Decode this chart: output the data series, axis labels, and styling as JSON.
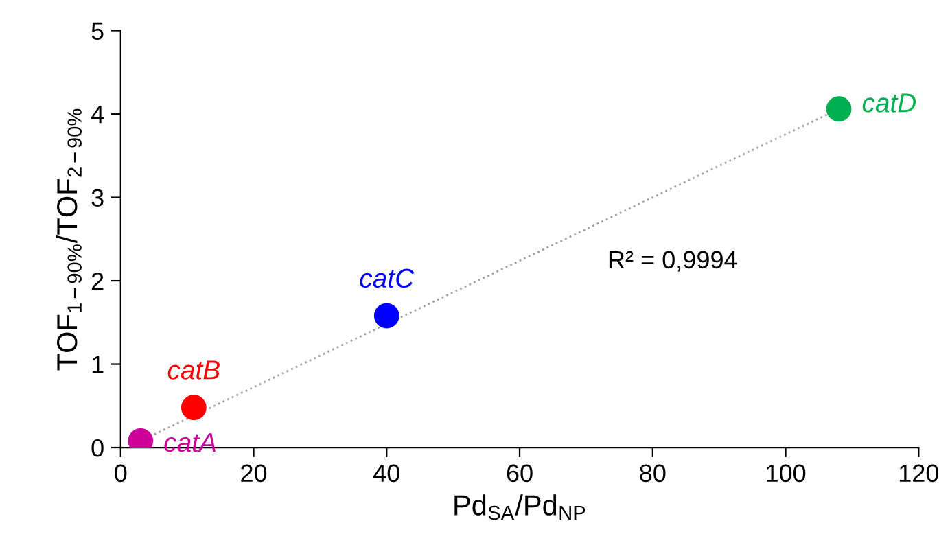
{
  "chart_data": {
    "type": "scatter",
    "xlabel": "Pd$_{SA}$/Pd$_{NP}$",
    "ylabel": "TOF$_{1−90%}$/TOF$_{2−90%}$",
    "xlim": [
      0,
      120
    ],
    "xticks": [
      0,
      20,
      40,
      60,
      80,
      100,
      120
    ],
    "ylim": [
      0,
      5
    ],
    "yticks": [
      0,
      1,
      2,
      3,
      4,
      5
    ],
    "series": [
      {
        "name": "catA",
        "color": "#cc0099",
        "x": [
          3
        ],
        "values": [
          0.08
        ]
      },
      {
        "name": "catB",
        "color": "#ff0000",
        "x": [
          11
        ],
        "values": [
          0.48
        ]
      },
      {
        "name": "catC",
        "color": "#0000ff",
        "x": [
          40
        ],
        "values": [
          1.58
        ]
      },
      {
        "name": "catD",
        "color": "#00b050",
        "x": [
          108
        ],
        "values": [
          4.06
        ]
      },
      {
        "type": "line",
        "color": "#a0a0a0",
        "line_style": "dotted",
        "x": [
          3,
          108
        ],
        "values": [
          0.08,
          4.06
        ]
      }
    ],
    "annotations": [
      "R² = 0,9994"
    ],
    "marker": "circle",
    "grid": false,
    "legend": false
  }
}
